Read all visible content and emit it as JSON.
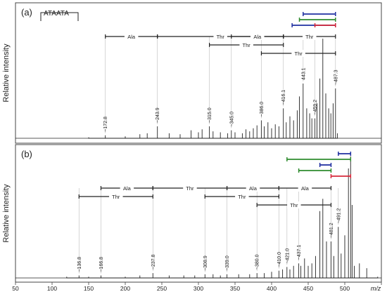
{
  "chart_data": [
    {
      "type": "line",
      "panel_label": "(a)",
      "ylabel": "Relative intensity",
      "inset_label": "ATAATA",
      "xlim": [
        50,
        550
      ],
      "x": [
        150,
        172.8,
        200,
        220,
        230,
        243.9,
        260,
        275,
        290,
        300,
        305,
        315,
        320,
        330,
        340,
        345,
        350,
        360,
        365,
        370,
        375,
        380,
        386,
        390,
        395,
        400,
        405,
        410,
        416.1,
        420,
        425,
        430,
        435,
        438,
        443.1,
        448,
        452,
        455,
        459.2,
        462,
        466,
        470,
        474,
        478,
        481,
        484,
        487.3,
        490
      ],
      "y": [
        0.01,
        0.03,
        0.02,
        0.04,
        0.05,
        0.12,
        0.05,
        0.04,
        0.08,
        0.06,
        0.09,
        0.12,
        0.07,
        0.06,
        0.05,
        0.08,
        0.06,
        0.05,
        0.09,
        0.07,
        0.1,
        0.13,
        0.18,
        0.12,
        0.16,
        0.1,
        0.14,
        0.12,
        0.3,
        0.16,
        0.22,
        0.18,
        0.28,
        0.42,
        0.55,
        0.3,
        0.25,
        0.2,
        0.2,
        0.35,
        0.6,
        1.0,
        0.45,
        0.3,
        0.25,
        0.35,
        0.5,
        0.05
      ],
      "peak_labels": [
        {
          "x": 172.8,
          "text": "~172.8",
          "y": 0.03
        },
        {
          "x": 243.9,
          "text": "~243.9",
          "y": 0.12
        },
        {
          "x": 315.0,
          "text": "~315.0",
          "y": 0.12
        },
        {
          "x": 345.0,
          "text": "~345.0",
          "y": 0.08
        },
        {
          "x": 386.0,
          "text": "~386.0",
          "y": 0.18
        },
        {
          "x": 416.1,
          "text": "~416.1",
          "y": 0.3
        },
        {
          "x": 443.1,
          "text": "443.1",
          "y": 0.55
        },
        {
          "x": 459.2,
          "text": "~459.2",
          "y": 0.2
        },
        {
          "x": 487.3,
          "text": "~487.3",
          "y": 0.5
        }
      ],
      "ladders": [
        {
          "from": 172.8,
          "to": 243.9,
          "label": "Ala",
          "row": 0
        },
        {
          "from": 243.9,
          "to": 416.1,
          "label": "Thr",
          "row": 0
        },
        {
          "from": 345.0,
          "to": 416.1,
          "label": "Ala",
          "row": 0
        },
        {
          "from": 416.1,
          "to": 487.3,
          "label": "Thr",
          "row": 0
        },
        {
          "from": 315.0,
          "to": 416.1,
          "label": "Thr",
          "row": 1
        },
        {
          "from": 386.0,
          "to": 487.3,
          "label": "Thr",
          "row": 2
        }
      ],
      "color_bars": [
        {
          "from": 443.1,
          "to": 487.3,
          "color": "#1f2fa0",
          "level": 0
        },
        {
          "from": 438.0,
          "to": 487.3,
          "color": "#2e8b2e",
          "level": 1
        },
        {
          "from": 428.0,
          "to": 487.3,
          "color": "#1f2fa0",
          "level": 2
        },
        {
          "from": 459.2,
          "to": 487.3,
          "color": "#d62839",
          "level": 2
        }
      ],
      "ylim": [
        0,
        1.05
      ]
    },
    {
      "type": "line",
      "panel_label": "(b)",
      "ylabel": "Relative intensity",
      "xlabel": "m/z",
      "xlim": [
        50,
        550
      ],
      "xticks": [
        50,
        100,
        150,
        200,
        250,
        300,
        350,
        400,
        450,
        500,
        550
      ],
      "x": [
        120,
        136.8,
        150,
        166.8,
        200,
        220,
        237.8,
        260,
        280,
        295,
        308.9,
        320,
        330,
        339.0,
        355,
        370,
        380.0,
        390,
        400,
        410.0,
        415,
        421.0,
        425,
        430,
        437.1,
        440,
        445,
        450,
        455,
        460,
        466,
        470,
        475,
        481.2,
        485,
        491.2,
        495,
        500,
        505,
        508,
        510,
        513,
        520,
        530,
        545
      ],
      "y": [
        0.01,
        0.02,
        0.01,
        0.02,
        0.01,
        0.02,
        0.04,
        0.02,
        0.02,
        0.02,
        0.03,
        0.03,
        0.02,
        0.03,
        0.03,
        0.03,
        0.04,
        0.04,
        0.05,
        0.06,
        0.07,
        0.09,
        0.07,
        0.1,
        0.12,
        0.1,
        0.16,
        0.1,
        0.12,
        0.18,
        0.55,
        0.65,
        0.3,
        0.3,
        0.18,
        0.42,
        0.2,
        0.35,
        0.9,
        1.0,
        0.6,
        0.1,
        0.12,
        0.08,
        0.01
      ],
      "peak_labels": [
        {
          "x": 136.8,
          "text": "~136.8",
          "y": 0.02
        },
        {
          "x": 166.8,
          "text": "~166.8",
          "y": 0.02
        },
        {
          "x": 237.8,
          "text": "~237.8",
          "y": 0.04
        },
        {
          "x": 308.9,
          "text": "~308.9",
          "y": 0.03
        },
        {
          "x": 339.0,
          "text": "~339.0",
          "y": 0.03
        },
        {
          "x": 380.0,
          "text": "~380.0",
          "y": 0.04
        },
        {
          "x": 410.0,
          "text": "~410.0",
          "y": 0.06
        },
        {
          "x": 421.0,
          "text": "~421.0",
          "y": 0.09
        },
        {
          "x": 437.1,
          "text": "~437.1",
          "y": 0.12
        },
        {
          "x": 481.2,
          "text": "~481.2",
          "y": 0.3
        },
        {
          "x": 491.2,
          "text": "~491.2",
          "y": 0.42
        }
      ],
      "ladders": [
        {
          "from": 166.8,
          "to": 237.8,
          "label": "Ala",
          "row": 0
        },
        {
          "from": 237.8,
          "to": 339.0,
          "label": "Thr",
          "row": 0
        },
        {
          "from": 339.0,
          "to": 410.0,
          "label": "Ala",
          "row": 0
        },
        {
          "from": 410.0,
          "to": 481.2,
          "label": "Ala",
          "row": 0
        },
        {
          "from": 136.8,
          "to": 237.8,
          "label": "Thr",
          "row": 1
        },
        {
          "from": 308.9,
          "to": 410.0,
          "label": "Thr",
          "row": 1
        },
        {
          "from": 380.0,
          "to": 481.2,
          "label": "Thr",
          "row": 2
        }
      ],
      "color_bars": [
        {
          "from": 491.2,
          "to": 508.0,
          "color": "#1f2fa0",
          "level": 0
        },
        {
          "from": 421.0,
          "to": 508.0,
          "color": "#2e8b2e",
          "level": 1
        },
        {
          "from": 466.0,
          "to": 481.2,
          "color": "#1f2fa0",
          "level": 2
        },
        {
          "from": 437.1,
          "to": 481.2,
          "color": "#2e8b2e",
          "level": 3
        },
        {
          "from": 481.2,
          "to": 508.0,
          "color": "#d62839",
          "level": 4
        }
      ],
      "ylim": [
        0,
        1.05
      ]
    }
  ]
}
